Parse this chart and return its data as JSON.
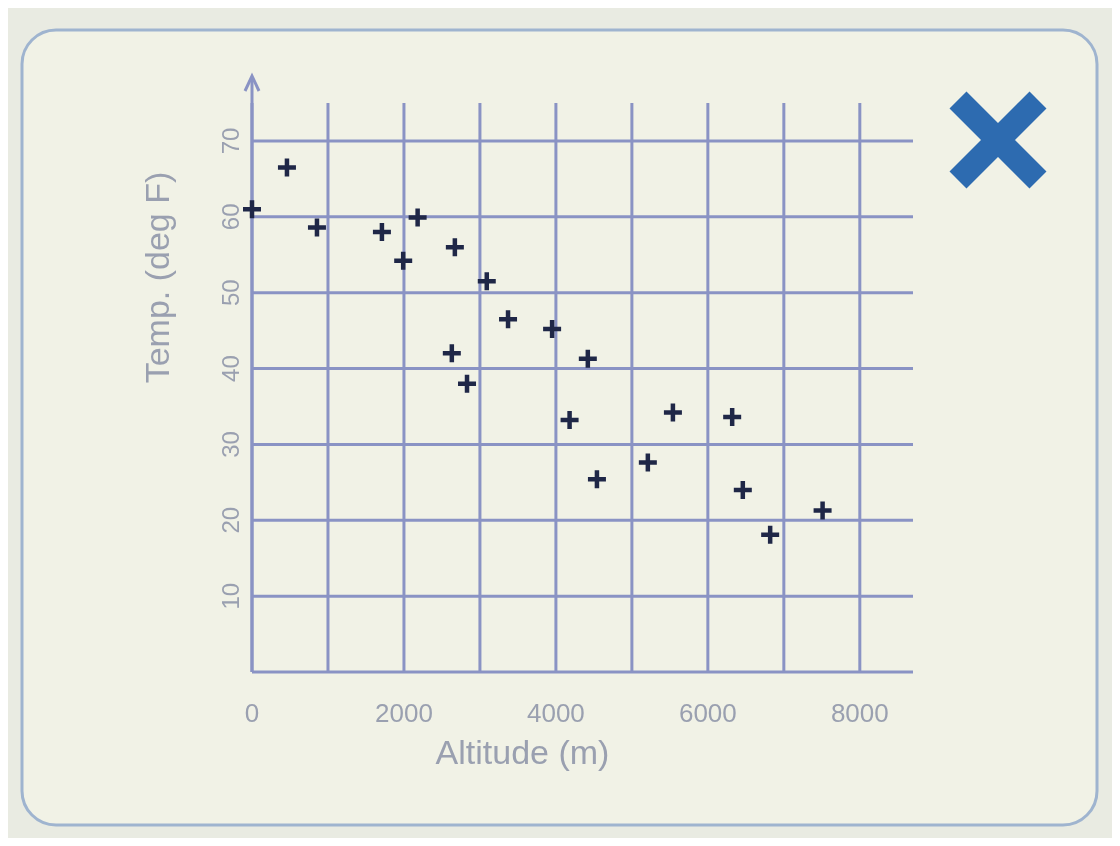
{
  "chart_data": {
    "type": "scatter",
    "xlabel": "Altitude (m)",
    "ylabel": "Temp. (deg F)",
    "x": [
      0,
      460,
      855,
      1710,
      1990,
      2180,
      2670,
      3090,
      3370,
      3950,
      4420,
      2630,
      2830,
      4180,
      4540,
      5210,
      5540,
      6320,
      6460,
      6820,
      7510
    ],
    "series": [
      {
        "color": "#1f2747",
        "values": [
          61,
          66.5,
          58.6,
          58,
          54.2,
          59.9,
          56,
          51.5,
          46.5,
          45.2,
          41.3,
          42,
          38,
          33.2,
          25.4,
          27.6,
          34.2,
          33.6,
          24,
          18.1,
          21.3
        ]
      }
    ],
    "marker": "cross",
    "grid": true,
    "xlim": [
      0,
      8700
    ],
    "ylim": [
      0,
      75
    ],
    "xticks": [
      0,
      {
        "value": 1000,
        "label": null
      },
      2000,
      {
        "value": 3000,
        "label": null
      },
      4000,
      {
        "value": 5000,
        "label": null
      },
      6000,
      {
        "value": 7000,
        "label": null
      },
      8000
    ],
    "yticks": [
      10,
      20,
      30,
      40,
      50,
      60,
      70
    ]
  }
}
